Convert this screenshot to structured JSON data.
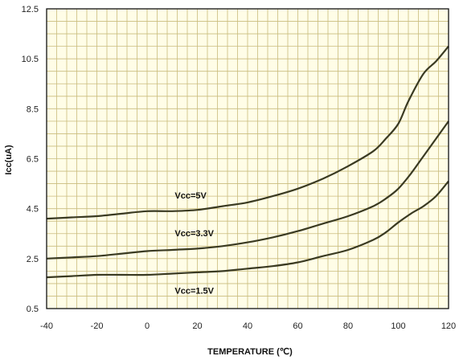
{
  "chart_data": {
    "type": "line",
    "title": "",
    "xlabel": "TEMPERATURE (℃)",
    "ylabel": "Icc(uA)",
    "xlim": [
      -40,
      120
    ],
    "ylim": [
      0.5,
      12.5
    ],
    "x_ticks": [
      -40,
      -20,
      0,
      20,
      40,
      60,
      80,
      100,
      120
    ],
    "x_tick_labels": [
      "-40",
      "-20",
      "0",
      "20",
      "40",
      "60",
      "80",
      "100",
      "120"
    ],
    "y_ticks": [
      0.5,
      2.5,
      4.5,
      6.5,
      8.5,
      10.5,
      12.5
    ],
    "y_tick_labels": [
      "0.5",
      "2.5",
      "4.5",
      "6.5",
      "8.5",
      "10.5",
      "12.5"
    ],
    "grid": true,
    "grid_minor_x_step": 4,
    "grid_minor_y_step": 0.5,
    "colors": {
      "plot_bg": "#fffde7",
      "grid": "#c9bc7d",
      "line": "#3a3a22",
      "frame": "#111111"
    },
    "annotations": [
      {
        "text": "Vcc=5V",
        "x": 11,
        "y": 4.9
      },
      {
        "text": "Vcc=3.3V",
        "x": 11,
        "y": 3.4
      },
      {
        "text": "Vcc=1.5V",
        "x": 11,
        "y": 1.1
      }
    ],
    "series": [
      {
        "label": "Vcc=5V",
        "x": [
          -40,
          -30,
          -20,
          -10,
          0,
          10,
          20,
          30,
          40,
          50,
          60,
          70,
          80,
          90,
          95,
          100,
          104,
          110,
          115,
          120
        ],
        "y": [
          4.1,
          4.15,
          4.2,
          4.3,
          4.4,
          4.4,
          4.45,
          4.6,
          4.75,
          5.0,
          5.3,
          5.7,
          6.2,
          6.8,
          7.3,
          7.9,
          8.8,
          9.9,
          10.4,
          11.0
        ]
      },
      {
        "label": "Vcc=3.3V",
        "x": [
          -40,
          -30,
          -20,
          -10,
          0,
          10,
          20,
          30,
          40,
          50,
          60,
          70,
          80,
          90,
          95,
          100,
          105,
          110,
          115,
          120
        ],
        "y": [
          2.5,
          2.55,
          2.6,
          2.7,
          2.8,
          2.85,
          2.9,
          3.0,
          3.15,
          3.35,
          3.6,
          3.9,
          4.2,
          4.6,
          4.9,
          5.3,
          5.9,
          6.6,
          7.3,
          8.0
        ]
      },
      {
        "label": "Vcc=1.5V",
        "x": [
          -40,
          -30,
          -20,
          -10,
          0,
          10,
          20,
          30,
          40,
          50,
          60,
          70,
          80,
          90,
          95,
          100,
          105,
          110,
          115,
          120
        ],
        "y": [
          1.75,
          1.8,
          1.85,
          1.85,
          1.85,
          1.9,
          1.95,
          2.0,
          2.1,
          2.2,
          2.35,
          2.6,
          2.85,
          3.25,
          3.55,
          3.95,
          4.3,
          4.6,
          5.0,
          5.6
        ]
      }
    ]
  }
}
